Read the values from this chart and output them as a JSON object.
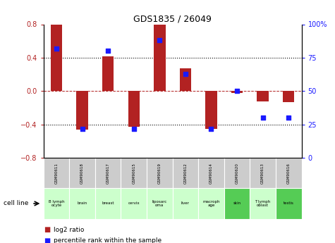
{
  "title": "GDS1835 / 26049",
  "samples": [
    "GSM90611",
    "GSM90618",
    "GSM90617",
    "GSM90615",
    "GSM90619",
    "GSM90612",
    "GSM90614",
    "GSM90620",
    "GSM90613",
    "GSM90616"
  ],
  "cell_lines": [
    "B lymph\nocyte",
    "brain",
    "breast",
    "cervix",
    "liposarc\noma",
    "liver",
    "macroph\nage",
    "skin",
    "T lymph\noblast",
    "testis"
  ],
  "log2_ratio": [
    0.8,
    -0.46,
    0.42,
    -0.43,
    0.8,
    0.27,
    -0.45,
    -0.02,
    -0.12,
    -0.13
  ],
  "percentile_rank": [
    82,
    22,
    80,
    22,
    88,
    63,
    22,
    50,
    30,
    30
  ],
  "bar_color": "#b22222",
  "dot_color": "#1a1aff",
  "ylim": [
    -0.8,
    0.8
  ],
  "y2lim": [
    0,
    100
  ],
  "yticks": [
    -0.8,
    -0.4,
    0,
    0.4,
    0.8
  ],
  "y2ticks": [
    0,
    25,
    50,
    75,
    100
  ],
  "y2ticklabels": [
    "0",
    "25",
    "50",
    "75",
    "100%"
  ],
  "cell_line_bg_light": "#ccffcc",
  "cell_line_bg_dark": "#55cc55",
  "sample_bg": "#cccccc",
  "legend_red_label": "log2 ratio",
  "legend_blue_label": "percentile rank within the sample",
  "cell_line_bgs": [
    "#ccffcc",
    "#ccffcc",
    "#ccffcc",
    "#ccffcc",
    "#ccffcc",
    "#ccffcc",
    "#ccffcc",
    "#55cc55",
    "#ccffcc",
    "#55cc55"
  ]
}
